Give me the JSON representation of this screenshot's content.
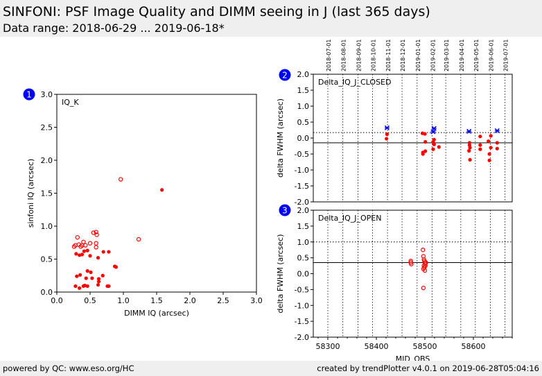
{
  "header": {
    "title": "SINFONI: PSF Image Quality and DIMM seeing in J (last 365 days)",
    "subtitle": "Data range: 2018-06-29 ... 2019-06-18*"
  },
  "footer": {
    "left": "powered by QC: www.eso.org/HC",
    "right": "created by trendPlotter v4.0.1 on 2019-06-28T05:04:16"
  },
  "colors": {
    "badge": "#0000ff",
    "data": "#ff0000",
    "highlight": "#0000ff",
    "axis": "#000000"
  },
  "chart_data": [
    {
      "type": "scatter",
      "badge": "1",
      "panel_label": "IQ_K",
      "xlabel": "DIMM IQ (arcsec)",
      "ylabel": "sinfoni IQ (arcsec)",
      "xlim": [
        0,
        3
      ],
      "ylim": [
        0,
        3
      ],
      "xticks": [
        "0.0",
        "0.5",
        "1.0",
        "1.5",
        "2.0",
        "2.5",
        "3.0"
      ],
      "yticks": [
        "0.0",
        "0.5",
        "1.0",
        "1.5",
        "2.0",
        "2.5",
        "3.0"
      ],
      "filled": [
        [
          0.29,
          0.58
        ],
        [
          0.34,
          0.56
        ],
        [
          0.38,
          0.57
        ],
        [
          0.41,
          0.62
        ],
        [
          0.46,
          0.63
        ],
        [
          0.5,
          0.55
        ],
        [
          0.62,
          0.52
        ],
        [
          0.7,
          0.61
        ],
        [
          0.78,
          0.61
        ],
        [
          0.87,
          0.39
        ],
        [
          0.89,
          0.38
        ],
        [
          0.3,
          0.24
        ],
        [
          0.35,
          0.26
        ],
        [
          0.44,
          0.21
        ],
        [
          0.46,
          0.32
        ],
        [
          0.51,
          0.3
        ],
        [
          0.53,
          0.21
        ],
        [
          0.63,
          0.2
        ],
        [
          0.63,
          0.16
        ],
        [
          0.69,
          0.25
        ],
        [
          0.28,
          0.09
        ],
        [
          0.34,
          0.06
        ],
        [
          0.4,
          0.09
        ],
        [
          0.42,
          0.1
        ],
        [
          0.46,
          0.09
        ],
        [
          0.62,
          0.11
        ],
        [
          0.76,
          0.09
        ],
        [
          0.78,
          0.09
        ],
        [
          1.58,
          1.55
        ]
      ],
      "hollow": [
        [
          0.26,
          0.69
        ],
        [
          0.28,
          0.71
        ],
        [
          0.31,
          0.83
        ],
        [
          0.33,
          0.72
        ],
        [
          0.36,
          0.69
        ],
        [
          0.38,
          0.71
        ],
        [
          0.4,
          0.76
        ],
        [
          0.43,
          0.71
        ],
        [
          0.5,
          0.74
        ],
        [
          0.55,
          0.9
        ],
        [
          0.59,
          0.91
        ],
        [
          0.6,
          0.87
        ],
        [
          0.59,
          0.74
        ],
        [
          0.59,
          0.68
        ],
        [
          0.96,
          1.71
        ],
        [
          1.23,
          0.8
        ]
      ]
    },
    {
      "type": "scatter",
      "badge": "2",
      "panel_label": "Delta_IQ_J_CLOSED",
      "ylabel": "delta FWHM (arcsec)",
      "xlim": [
        58270,
        58680
      ],
      "ylim": [
        -2.0,
        2.0
      ],
      "yticks": [
        "-2.0",
        "-1.5",
        "-1.0",
        "-0.5",
        "0.0",
        "0.5",
        "1.0",
        "1.5",
        "2.0"
      ],
      "date_labels": [
        "2018-07-01",
        "2018-08-01",
        "2018-09-01",
        "2018-10-01",
        "2018-11-01",
        "2018-12-01",
        "2019-01-01",
        "2019-02-01",
        "2019-03-01",
        "2019-04-01",
        "2019-05-01",
        "2019-06-01",
        "2019-07-01"
      ],
      "date_mjd": [
        58300,
        58331,
        58362,
        58392,
        58423,
        58453,
        58484,
        58515,
        58543,
        58574,
        58604,
        58635,
        58665
      ],
      "hlines": [
        {
          "y": 0.17,
          "style": "dotted"
        },
        {
          "y": -0.15,
          "style": "solid"
        }
      ],
      "points": [
        [
          58421,
          -0.02
        ],
        [
          58422,
          0.12
        ],
        [
          58495,
          0.15
        ],
        [
          58500,
          0.13
        ],
        [
          58496,
          -0.45
        ],
        [
          58496,
          -0.5
        ],
        [
          58501,
          -0.41
        ],
        [
          58501,
          -0.12
        ],
        [
          58517,
          -0.12
        ],
        [
          58519,
          -0.05
        ],
        [
          58519,
          -0.2
        ],
        [
          58517,
          -0.35
        ],
        [
          58529,
          -0.28
        ],
        [
          58592,
          -0.15
        ],
        [
          58592,
          -0.22
        ],
        [
          58593,
          -0.3
        ],
        [
          58591,
          -0.4
        ],
        [
          58593,
          -0.68
        ],
        [
          58614,
          0.05
        ],
        [
          58614,
          -0.22
        ],
        [
          58614,
          -0.35
        ],
        [
          58631,
          -0.1
        ],
        [
          58633,
          -0.5
        ],
        [
          58633,
          -0.7
        ],
        [
          58636,
          0.07
        ],
        [
          58636,
          -0.3
        ],
        [
          58649,
          -0.15
        ],
        [
          58649,
          -0.33
        ]
      ],
      "highlights": [
        [
          58422,
          0.32
        ],
        [
          58517,
          0.2
        ],
        [
          58519,
          0.3
        ],
        [
          58591,
          0.21
        ],
        [
          58649,
          0.23
        ]
      ]
    },
    {
      "type": "scatter",
      "badge": "3",
      "panel_label": "Delta_IQ_J_OPEN",
      "xlabel": "MJD_OBS",
      "ylabel": "delta FWHM (arcsec)",
      "xlim": [
        58270,
        58680
      ],
      "ylim": [
        -2.0,
        2.0
      ],
      "xticks": [
        "58300",
        "58400",
        "58500",
        "58600"
      ],
      "xtick_values": [
        58300,
        58400,
        58500,
        58600
      ],
      "yticks": [
        "-2.0",
        "-1.5",
        "-1.0",
        "-0.5",
        "0.0",
        "0.5",
        "1.0",
        "1.5",
        "2.0"
      ],
      "date_mjd": [
        58300,
        58331,
        58362,
        58392,
        58423,
        58453,
        58484,
        58515,
        58543,
        58574,
        58604,
        58635,
        58665
      ],
      "hlines": [
        {
          "y": 1.0,
          "style": "dotted"
        },
        {
          "y": 0.35,
          "style": "solid"
        }
      ],
      "points": [
        [
          58471,
          0.4
        ],
        [
          58471,
          0.35
        ],
        [
          58472,
          0.3
        ],
        [
          58496,
          0.75
        ],
        [
          58497,
          0.55
        ],
        [
          58498,
          0.45
        ],
        [
          58499,
          0.4
        ],
        [
          58500,
          0.35
        ],
        [
          58501,
          0.3
        ],
        [
          58498,
          0.25
        ],
        [
          58499,
          0.2
        ],
        [
          58497,
          0.15
        ],
        [
          58500,
          0.1
        ],
        [
          58502,
          0.35
        ],
        [
          58501,
          0.25
        ],
        [
          58497,
          -0.45
        ]
      ]
    }
  ]
}
